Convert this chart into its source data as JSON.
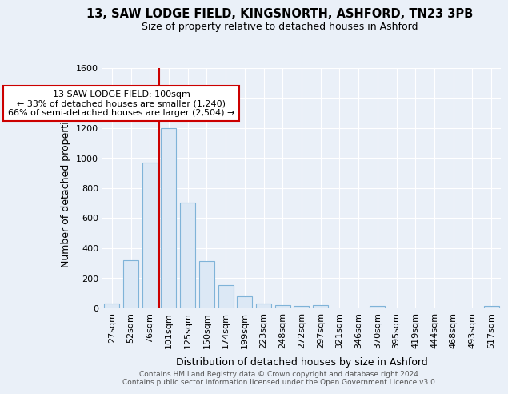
{
  "title1": "13, SAW LODGE FIELD, KINGSNORTH, ASHFORD, TN23 3PB",
  "title2": "Size of property relative to detached houses in Ashford",
  "xlabel": "Distribution of detached houses by size in Ashford",
  "ylabel": "Number of detached properties",
  "bar_color": "#dce8f5",
  "bar_edge_color": "#7fb3d8",
  "categories": [
    "27sqm",
    "52sqm",
    "76sqm",
    "101sqm",
    "125sqm",
    "150sqm",
    "174sqm",
    "199sqm",
    "223sqm",
    "248sqm",
    "272sqm",
    "297sqm",
    "321sqm",
    "346sqm",
    "370sqm",
    "395sqm",
    "419sqm",
    "444sqm",
    "468sqm",
    "493sqm",
    "517sqm"
  ],
  "values": [
    28,
    320,
    970,
    1200,
    700,
    310,
    150,
    75,
    28,
    20,
    15,
    20,
    0,
    0,
    15,
    0,
    0,
    0,
    0,
    0,
    15
  ],
  "ylim": [
    0,
    1600
  ],
  "yticks": [
    0,
    200,
    400,
    600,
    800,
    1000,
    1200,
    1400,
    1600
  ],
  "annotation_box_text": "13 SAW LODGE FIELD: 100sqm\n← 33% of detached houses are smaller (1,240)\n66% of semi-detached houses are larger (2,504) →",
  "vline_x_index": 2,
  "annotation_box_color": "#ffffff",
  "annotation_box_edge_color": "#cc0000",
  "vline_color": "#cc0000",
  "footer1": "Contains HM Land Registry data © Crown copyright and database right 2024.",
  "footer2": "Contains public sector information licensed under the Open Government Licence v3.0.",
  "bg_color": "#eaf0f8",
  "plot_bg_color": "#eaf0f8",
  "grid_color": "#ffffff",
  "title_fontsize": 10.5,
  "subtitle_fontsize": 9,
  "axis_label_fontsize": 9,
  "tick_fontsize": 8,
  "footer_fontsize": 6.5
}
